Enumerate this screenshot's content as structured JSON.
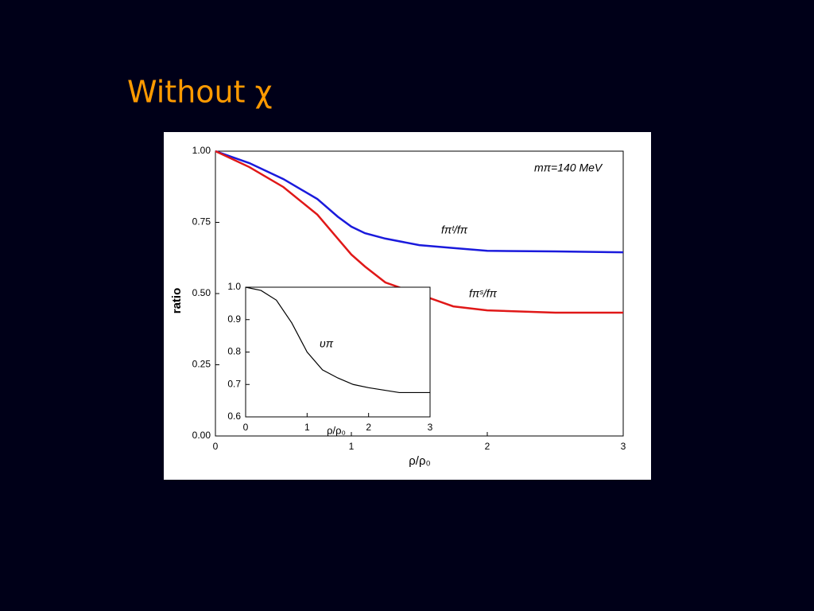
{
  "slide_title": "Without χ",
  "chart_data": [
    {
      "type": "line",
      "xlabel": "ρ/ρ₀",
      "ylabel": "ratio",
      "annotation": "mπ=140 MeV",
      "x": [
        0,
        0.25,
        0.5,
        0.75,
        0.9,
        1.0,
        1.1,
        1.25,
        1.5,
        1.75,
        2.0,
        2.5,
        3.0
      ],
      "series": [
        {
          "name": "fπᵗ/fπ",
          "color": "#1a1adc",
          "values": [
            1.0,
            0.958,
            0.902,
            0.832,
            0.77,
            0.735,
            0.712,
            0.693,
            0.67,
            0.66,
            0.65,
            0.648,
            0.645
          ]
        },
        {
          "name": "fπˢ/fπ",
          "color": "#e01818",
          "values": [
            1.0,
            0.944,
            0.874,
            0.777,
            0.693,
            0.637,
            0.595,
            0.539,
            0.497,
            0.455,
            0.441,
            0.433,
            0.433
          ]
        }
      ],
      "xlim": [
        0,
        3
      ],
      "ylim": [
        0,
        1
      ],
      "xticks": [
        0,
        1,
        2,
        3
      ],
      "yticks": [
        {
          "value": 0,
          "label": "0.00"
        },
        {
          "value": 0.25,
          "label": "0.25"
        },
        {
          "value": 0.5,
          "label": "0.50"
        },
        {
          "value": 0.75,
          "label": "0.75"
        },
        {
          "value": 1,
          "label": "1.00"
        }
      ]
    },
    {
      "type": "line",
      "xlabel": "ρ/ρ₀",
      "x": [
        0,
        0.25,
        0.5,
        0.75,
        1.0,
        1.25,
        1.5,
        1.75,
        2.0,
        2.5,
        3.0
      ],
      "series": [
        {
          "name": "υπ",
          "color": "#000000",
          "values": [
            1.0,
            0.99,
            0.96,
            0.89,
            0.8,
            0.745,
            0.72,
            0.7,
            0.69,
            0.675,
            0.675
          ]
        }
      ],
      "xlim": [
        0,
        3
      ],
      "ylim": [
        0.6,
        1.0
      ],
      "xticks": [
        0,
        1,
        2,
        3
      ],
      "yticks": [
        0.6,
        0.7,
        0.8,
        0.9,
        {
          "value": 1,
          "label": "1.0"
        }
      ]
    }
  ]
}
